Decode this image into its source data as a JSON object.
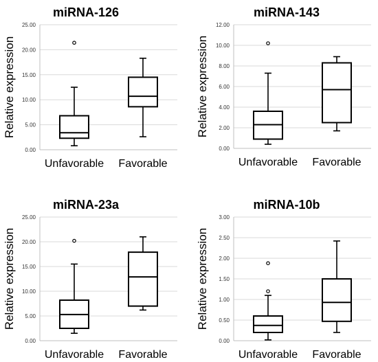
{
  "chart_data": [
    {
      "type": "box",
      "title": "miRNA-126",
      "ylabel": "Relative expression",
      "ylim": [
        0,
        25
      ],
      "yticks": [
        "0.00",
        "5.00",
        "10.00",
        "15.00",
        "20.00",
        "25.00"
      ],
      "categories": [
        "Unfavorable",
        "Favorable"
      ],
      "boxes": [
        {
          "min": 0.8,
          "q1": 2.3,
          "median": 3.4,
          "q3": 6.8,
          "max": 12.5,
          "outliers": [
            21.4
          ]
        },
        {
          "min": 2.6,
          "q1": 8.6,
          "median": 10.7,
          "q3": 14.5,
          "max": 18.3,
          "outliers": []
        }
      ]
    },
    {
      "type": "box",
      "title": "miRNA-143",
      "ylabel": "Relative expression",
      "ylim": [
        0,
        12
      ],
      "yticks": [
        "0.00",
        "2.00",
        "4.00",
        "6.00",
        "8.00",
        "10.00",
        "12.00"
      ],
      "categories": [
        "Unfavorable",
        "Favorable"
      ],
      "boxes": [
        {
          "min": 0.4,
          "q1": 0.9,
          "median": 2.3,
          "q3": 3.6,
          "max": 7.3,
          "outliers": [
            10.2
          ]
        },
        {
          "min": 1.7,
          "q1": 2.5,
          "median": 5.7,
          "q3": 8.3,
          "max": 8.9,
          "outliers": []
        }
      ]
    },
    {
      "type": "box",
      "title": "miRNA-23a",
      "ylabel": "Relative expression",
      "ylim": [
        0,
        25
      ],
      "yticks": [
        "0.00",
        "5.00",
        "10.00",
        "15.00",
        "20.00",
        "25.00"
      ],
      "categories": [
        "Unfavorable",
        "Favorable"
      ],
      "boxes": [
        {
          "min": 1.5,
          "q1": 2.5,
          "median": 5.3,
          "q3": 8.2,
          "max": 15.5,
          "outliers": [
            20.2
          ]
        },
        {
          "min": 6.2,
          "q1": 7.0,
          "median": 12.9,
          "q3": 17.9,
          "max": 21.0,
          "outliers": []
        }
      ]
    },
    {
      "type": "box",
      "title": "miRNA-10b",
      "ylabel": "Relative expression",
      "ylim": [
        0,
        3
      ],
      "yticks": [
        "0.00",
        "0.50",
        "1.00",
        "1.50",
        "2.00",
        "2.50",
        "3.00"
      ],
      "categories": [
        "Unfavorable",
        "Favorable"
      ],
      "boxes": [
        {
          "min": 0.02,
          "q1": 0.2,
          "median": 0.37,
          "q3": 0.6,
          "max": 1.1,
          "outliers": [
            1.2,
            1.88
          ]
        },
        {
          "min": 0.2,
          "q1": 0.47,
          "median": 0.93,
          "q3": 1.5,
          "max": 2.42,
          "outliers": []
        }
      ]
    }
  ]
}
